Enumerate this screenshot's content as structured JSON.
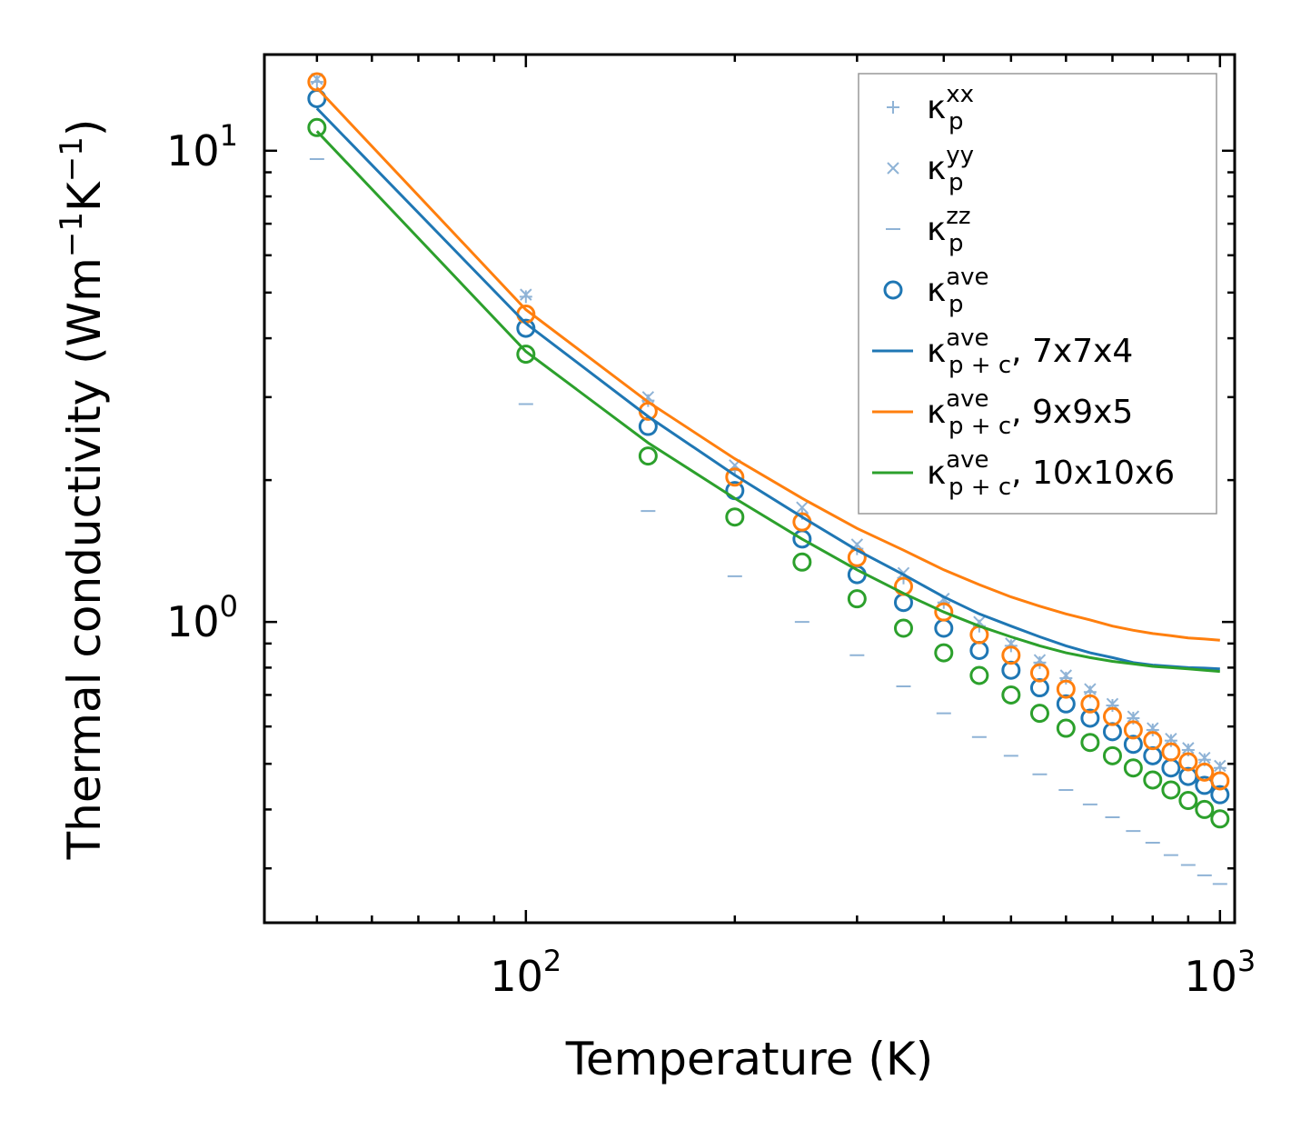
{
  "chart_data": {
    "type": "line",
    "xscale": "log",
    "yscale": "log",
    "xlim": [
      42,
      1050
    ],
    "ylim": [
      0.23,
      16
    ],
    "xlabel": "Temperature (K)",
    "ylabel": {
      "base": "Thermal conductivity (Wm",
      "exp1": "−1",
      "mid": "K",
      "exp2": "−1",
      "end": ")"
    },
    "x_ticks": [
      {
        "value": 100,
        "base": "10",
        "exp": "2"
      },
      {
        "value": 1000,
        "base": "10",
        "exp": "3"
      }
    ],
    "y_ticks": [
      {
        "value": 1,
        "base": "10",
        "exp": "0"
      },
      {
        "value": 10,
        "base": "10",
        "exp": "1"
      }
    ],
    "x": [
      50,
      100,
      150,
      200,
      250,
      300,
      350,
      400,
      450,
      500,
      550,
      600,
      650,
      700,
      750,
      800,
      850,
      900,
      950,
      1000
    ],
    "series": [
      {
        "name": "kxx",
        "marker": "plus",
        "color": "#8fb3d6",
        "legend": {
          "sym": "κ",
          "sup": "xx",
          "sub": "p",
          "suffix": ""
        },
        "values": [
          14.0,
          4.9,
          2.95,
          2.1,
          1.7,
          1.43,
          1.24,
          1.1,
          0.98,
          0.89,
          0.82,
          0.76,
          0.71,
          0.665,
          0.625,
          0.59,
          0.56,
          0.535,
          0.51,
          0.49
        ]
      },
      {
        "name": "kyy",
        "marker": "x",
        "color": "#8fb3d6",
        "legend": {
          "sym": "κ",
          "sup": "yy",
          "sub": "p",
          "suffix": ""
        },
        "values": [
          14.2,
          4.95,
          3.0,
          2.15,
          1.75,
          1.46,
          1.27,
          1.12,
          1.0,
          0.9,
          0.83,
          0.77,
          0.72,
          0.67,
          0.63,
          0.595,
          0.565,
          0.54,
          0.515,
          0.495
        ]
      },
      {
        "name": "kzz",
        "marker": "dash",
        "color": "#8fb3d6",
        "legend": {
          "sym": "κ",
          "sup": "zz",
          "sub": "p",
          "suffix": ""
        },
        "values": [
          9.6,
          2.9,
          1.72,
          1.25,
          1.0,
          0.85,
          0.73,
          0.64,
          0.57,
          0.52,
          0.475,
          0.44,
          0.41,
          0.385,
          0.36,
          0.34,
          0.32,
          0.305,
          0.29,
          0.278
        ]
      },
      {
        "name": "kave_1",
        "marker": "circle",
        "color": "#1f77b4",
        "legend": {
          "sym": "κ",
          "sup": "ave",
          "sub": "p",
          "suffix": ""
        },
        "values": [
          12.9,
          4.2,
          2.6,
          1.9,
          1.5,
          1.26,
          1.1,
          0.97,
          0.87,
          0.79,
          0.725,
          0.67,
          0.625,
          0.585,
          0.55,
          0.52,
          0.49,
          0.47,
          0.45,
          0.43
        ]
      },
      {
        "name": "kave_2",
        "marker": "circle",
        "color": "#ff7f0e",
        "legend": null,
        "values": [
          14.0,
          4.5,
          2.8,
          2.03,
          1.63,
          1.37,
          1.19,
          1.05,
          0.94,
          0.85,
          0.78,
          0.72,
          0.67,
          0.63,
          0.59,
          0.56,
          0.53,
          0.505,
          0.48,
          0.46
        ]
      },
      {
        "name": "kave_3",
        "marker": "circle",
        "color": "#2ca02c",
        "legend": null,
        "values": [
          11.2,
          3.7,
          2.25,
          1.67,
          1.34,
          1.12,
          0.97,
          0.86,
          0.77,
          0.7,
          0.64,
          0.595,
          0.555,
          0.52,
          0.49,
          0.462,
          0.44,
          0.418,
          0.4,
          0.382
        ]
      },
      {
        "name": "kpc_774",
        "marker": "line",
        "color": "#1f77b4",
        "legend": {
          "sym": "κ",
          "sup": "ave",
          "sub": "p + c",
          "suffix": ", 7x7x4"
        },
        "values": [
          12.3,
          4.3,
          2.73,
          2.05,
          1.67,
          1.42,
          1.26,
          1.13,
          1.04,
          0.98,
          0.93,
          0.89,
          0.86,
          0.84,
          0.82,
          0.81,
          0.805,
          0.8,
          0.798,
          0.795
        ]
      },
      {
        "name": "kpc_995",
        "marker": "line",
        "color": "#ff7f0e",
        "legend": {
          "sym": "κ",
          "sup": "ave",
          "sub": "p + c",
          "suffix": ", 9x9x5"
        },
        "values": [
          13.6,
          4.6,
          2.93,
          2.22,
          1.83,
          1.58,
          1.42,
          1.29,
          1.2,
          1.13,
          1.08,
          1.04,
          1.01,
          0.98,
          0.96,
          0.945,
          0.935,
          0.925,
          0.92,
          0.915
        ]
      },
      {
        "name": "kpc_10106",
        "marker": "line",
        "color": "#2ca02c",
        "legend": {
          "sym": "κ",
          "sup": "ave",
          "sub": "p + c",
          "suffix": ", 10x10x6"
        },
        "values": [
          11.0,
          3.75,
          2.4,
          1.83,
          1.5,
          1.29,
          1.15,
          1.05,
          0.98,
          0.93,
          0.89,
          0.86,
          0.84,
          0.825,
          0.815,
          0.805,
          0.8,
          0.795,
          0.79,
          0.785
        ]
      }
    ]
  }
}
